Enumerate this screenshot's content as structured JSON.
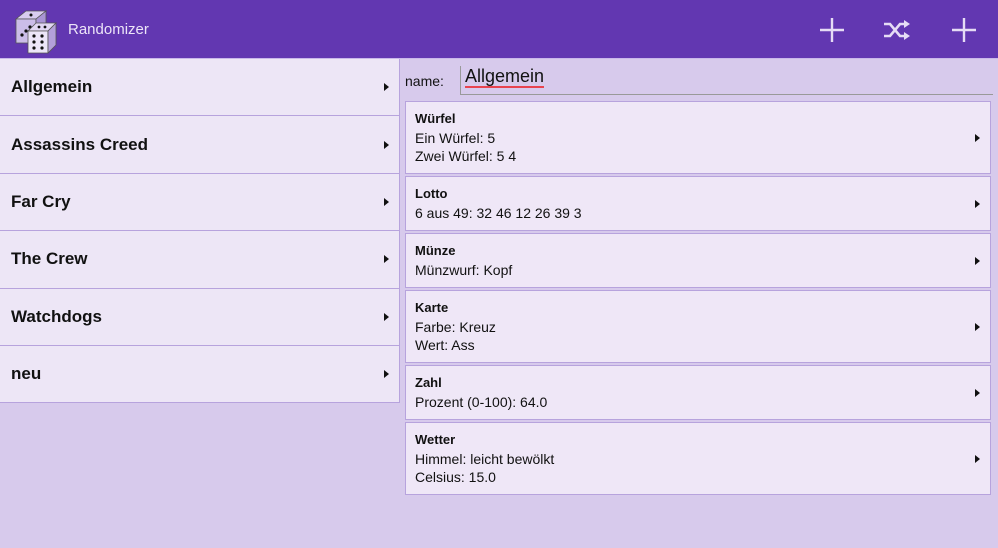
{
  "app": {
    "title": "Randomizer",
    "colors": {
      "header": "#6237b1",
      "background": "#d7caec",
      "item": "#ede6f6",
      "border": "#b7a3dd"
    }
  },
  "actions": [
    {
      "icon": "plus-icon"
    },
    {
      "icon": "shuffle-icon"
    },
    {
      "icon": "plus-icon"
    }
  ],
  "sidebar": {
    "items": [
      {
        "label": "Allgemein"
      },
      {
        "label": "Assassins Creed"
      },
      {
        "label": "Far Cry"
      },
      {
        "label": "The Crew"
      },
      {
        "label": "Watchdogs"
      },
      {
        "label": "neu"
      }
    ]
  },
  "detail": {
    "name_label": "name:",
    "name_value": "Allgemein",
    "cards": [
      {
        "title": "Würfel",
        "lines": [
          "Ein Würfel: 5",
          "Zwei Würfel: 5 4"
        ]
      },
      {
        "title": "Lotto",
        "lines": [
          "6 aus 49: 32 46 12 26 39 3"
        ]
      },
      {
        "title": "Münze",
        "lines": [
          "Münzwurf: Kopf"
        ]
      },
      {
        "title": "Karte",
        "lines": [
          "Farbe: Kreuz",
          "Wert: Ass"
        ]
      },
      {
        "title": "Zahl",
        "lines": [
          "Prozent (0-100): 64.0"
        ]
      },
      {
        "title": "Wetter",
        "lines": [
          "Himmel: leicht bewölkt",
          "Celsius: 15.0"
        ]
      }
    ]
  }
}
